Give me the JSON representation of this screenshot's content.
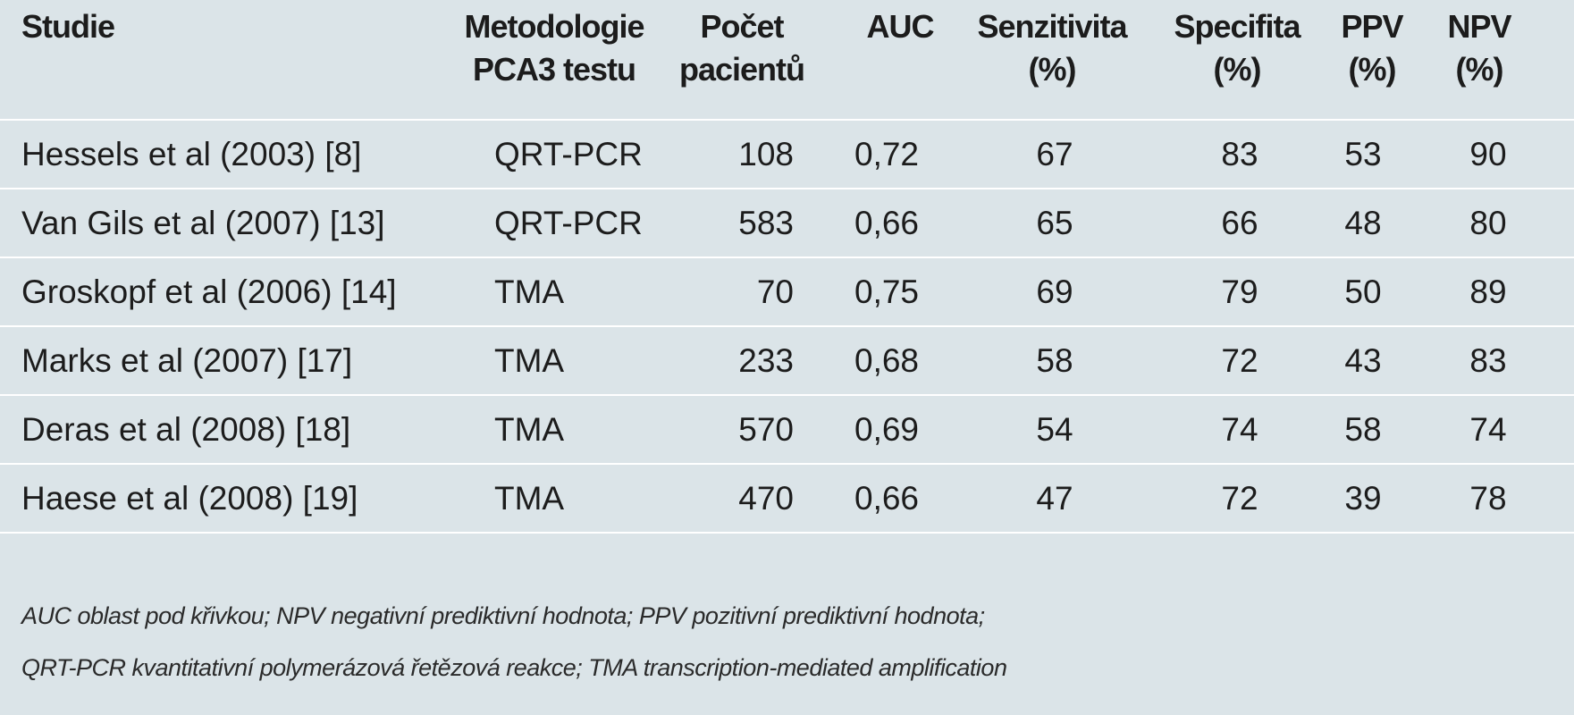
{
  "table": {
    "headers": {
      "study": [
        "Studie"
      ],
      "method": [
        "Metodologie",
        "PCA3 testu"
      ],
      "count": [
        "Počet",
        "pacientů"
      ],
      "auc": [
        "AUC"
      ],
      "sens": [
        "Senzitivita",
        "(%)"
      ],
      "spec": [
        "Specifita",
        "(%)"
      ],
      "ppv": [
        "PPV",
        "(%)"
      ],
      "npv": [
        "NPV",
        "(%)"
      ]
    },
    "rows": [
      {
        "study": "Hessels et al (2003) [8]",
        "method": "QRT-PCR",
        "count": "108",
        "auc": "0,72",
        "sens": "67",
        "spec": "83",
        "ppv": "53",
        "npv": "90"
      },
      {
        "study": "Van Gils et al (2007) [13]",
        "method": "QRT-PCR",
        "count": "583",
        "auc": "0,66",
        "sens": "65",
        "spec": "66",
        "ppv": "48",
        "npv": "80"
      },
      {
        "study": "Groskopf et al (2006) [14]",
        "method": "TMA",
        "count": "70",
        "auc": "0,75",
        "sens": "69",
        "spec": "79",
        "ppv": "50",
        "npv": "89"
      },
      {
        "study": "Marks et al (2007) [17]",
        "method": "TMA",
        "count": "233",
        "auc": "0,68",
        "sens": "58",
        "spec": "72",
        "ppv": "43",
        "npv": "83"
      },
      {
        "study": "Deras et al (2008) [18]",
        "method": "TMA",
        "count": "570",
        "auc": "0,69",
        "sens": "54",
        "spec": "74",
        "ppv": "58",
        "npv": "74"
      },
      {
        "study": "Haese et al (2008) [19]",
        "method": "TMA",
        "count": "470",
        "auc": "0,66",
        "sens": "47",
        "spec": "72",
        "ppv": "39",
        "npv": "78"
      }
    ]
  },
  "footnotes": [
    "AUC oblast pod křivkou; NPV negativní prediktivní hodnota; PPV pozitivní prediktivní hodnota;",
    "QRT-PCR kvantitativní polymerázová řetězová reakce; TMA transcription-mediated amplification"
  ],
  "colors": {
    "background": "#dbe4e8",
    "divider": "#ffffff",
    "text": "#1c1c1c"
  }
}
